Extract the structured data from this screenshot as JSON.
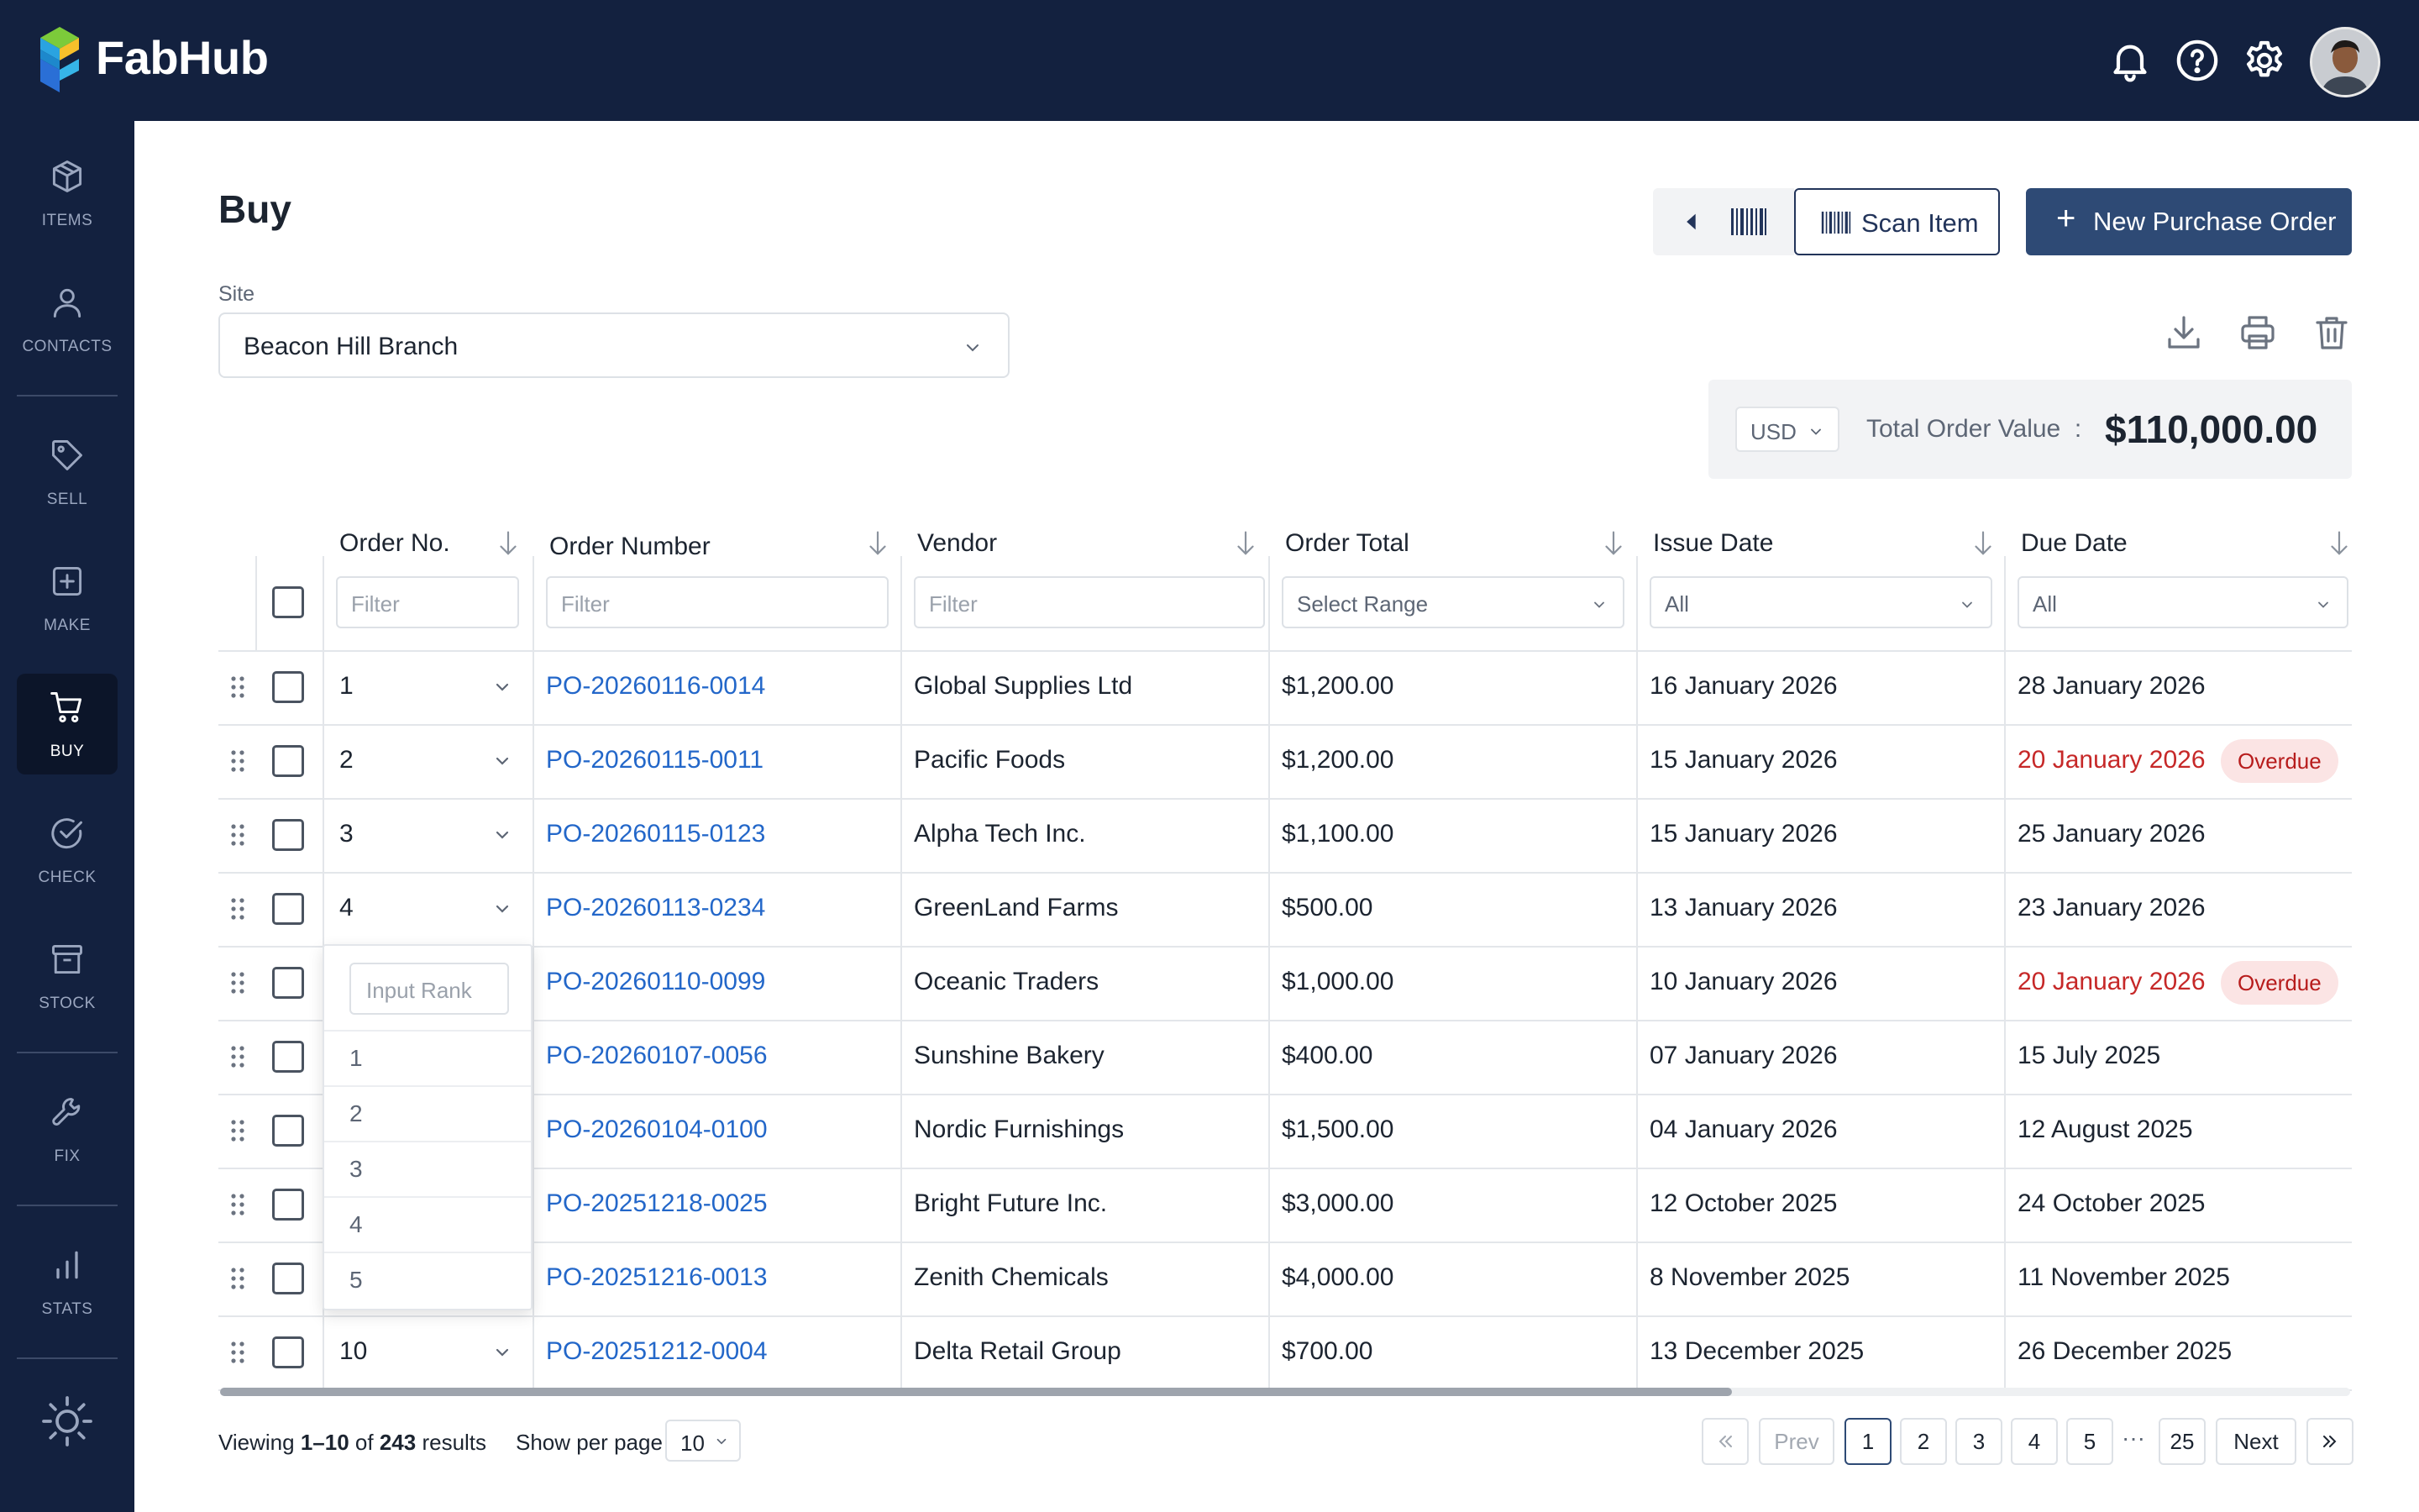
{
  "app": {
    "brand": "FabHub"
  },
  "sidebar": {
    "items": [
      {
        "label": "ITEMS",
        "icon": "cube-icon"
      },
      {
        "label": "CONTACTS",
        "icon": "person-icon"
      },
      {
        "label": "SELL",
        "icon": "tag-icon"
      },
      {
        "label": "MAKE",
        "icon": "plus-square-icon"
      },
      {
        "label": "BUY",
        "icon": "cart-icon",
        "active": true
      },
      {
        "label": "CHECK",
        "icon": "check-circle-icon"
      },
      {
        "label": "STOCK",
        "icon": "archive-icon"
      },
      {
        "label": "FIX",
        "icon": "wrench-icon"
      },
      {
        "label": "STATS",
        "icon": "bar-chart-icon"
      }
    ]
  },
  "page": {
    "title": "Buy",
    "site_label": "Site",
    "site_value": "Beacon Hill Branch"
  },
  "toolbar": {
    "scan_label": "Scan Item",
    "new_po_plus": "+",
    "new_po_label": "New Purchase Order"
  },
  "total": {
    "currency": "USD",
    "label": "Total Order Value",
    "separator": ":",
    "value": "$110,000.00"
  },
  "table": {
    "columns": [
      "Order No.",
      "Order Number",
      "Vendor",
      "Order Total",
      "Issue Date",
      "Due Date"
    ],
    "filters": {
      "order_no": "Filter",
      "order_number": "Filter",
      "vendor": "Filter",
      "order_total": "Select Range",
      "issue_date": "All",
      "due_date": "All"
    },
    "rows": [
      {
        "rank": "1",
        "po": "PO-20260116-0014",
        "vendor": "Global Supplies Ltd",
        "total": "$1,200.00",
        "issue": "16 January 2026",
        "due": "28 January 2026",
        "overdue": false
      },
      {
        "rank": "2",
        "po": "PO-20260115-0011",
        "vendor": "Pacific Foods",
        "total": "$1,200.00",
        "issue": "15 January 2026",
        "due": "20 January 2026",
        "overdue": true
      },
      {
        "rank": "3",
        "po": "PO-20260115-0123",
        "vendor": "Alpha Tech Inc.",
        "total": "$1,100.00",
        "issue": "15 January 2026",
        "due": "25 January 2026",
        "overdue": false
      },
      {
        "rank": "4",
        "po": "PO-20260113-0234",
        "vendor": "GreenLand Farms",
        "total": "$500.00",
        "issue": "13 January 2026",
        "due": "23 January 2026",
        "overdue": false
      },
      {
        "rank": "",
        "po": "PO-20260110-0099",
        "vendor": "Oceanic Traders",
        "total": "$1,000.00",
        "issue": "10 January 2026",
        "due": "20 January 2026",
        "overdue": true
      },
      {
        "rank": "",
        "po": "PO-20260107-0056",
        "vendor": "Sunshine Bakery",
        "total": "$400.00",
        "issue": "07 January 2026",
        "due": "15 July 2025",
        "overdue": false
      },
      {
        "rank": "",
        "po": "PO-20260104-0100",
        "vendor": "Nordic Furnishings",
        "total": "$1,500.00",
        "issue": "04 January 2026",
        "due": "12 August 2025",
        "overdue": false
      },
      {
        "rank": "",
        "po": "PO-20251218-0025",
        "vendor": "Bright Future Inc.",
        "total": "$3,000.00",
        "issue": "12 October 2025",
        "due": "24 October 2025",
        "overdue": false
      },
      {
        "rank": "",
        "po": "PO-20251216-0013",
        "vendor": "Zenith Chemicals",
        "total": "$4,000.00",
        "issue": "8 November 2025",
        "due": "11 November 2025",
        "overdue": false
      },
      {
        "rank": "10",
        "po": "PO-20251212-0004",
        "vendor": "Delta Retail Group",
        "total": "$700.00",
        "issue": "13 December 2025",
        "due": "26 December 2025",
        "overdue": false
      }
    ],
    "overdue_label": "Overdue"
  },
  "rank_dropdown": {
    "placeholder": "Input Rank",
    "options": [
      "1",
      "2",
      "3",
      "4",
      "5"
    ]
  },
  "footer": {
    "viewing_prefix": "Viewing",
    "viewing_range": "1–10",
    "viewing_of": "of",
    "viewing_total": "243",
    "viewing_suffix": "results",
    "per_page_label": "Show per page",
    "per_page_value": "10",
    "prev": "Prev",
    "next": "Next",
    "pages": [
      "1",
      "2",
      "3",
      "4",
      "5"
    ],
    "ellipsis": "···",
    "last_page": "25",
    "current_page": "1"
  }
}
